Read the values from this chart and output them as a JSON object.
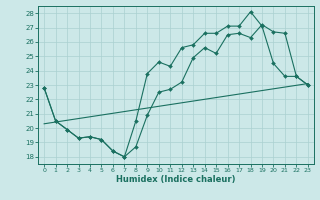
{
  "title": "",
  "xlabel": "Humidex (Indice chaleur)",
  "xlim": [
    -0.5,
    23.5
  ],
  "ylim": [
    17.5,
    28.5
  ],
  "xticks": [
    0,
    1,
    2,
    3,
    4,
    5,
    6,
    7,
    8,
    9,
    10,
    11,
    12,
    13,
    14,
    15,
    16,
    17,
    18,
    19,
    20,
    21,
    22,
    23
  ],
  "yticks": [
    18,
    19,
    20,
    21,
    22,
    23,
    24,
    25,
    26,
    27,
    28
  ],
  "bg_color": "#cce8e8",
  "grid_color": "#aad0d0",
  "line_color": "#1a7060",
  "line1_x": [
    0,
    1,
    2,
    3,
    4,
    5,
    6,
    7,
    8,
    9,
    10,
    11,
    12,
    13,
    14,
    15,
    16,
    17,
    18,
    19,
    20,
    21,
    22,
    23
  ],
  "line1_y": [
    22.8,
    20.5,
    19.9,
    19.3,
    19.4,
    19.2,
    18.4,
    18.0,
    18.7,
    20.9,
    22.5,
    22.7,
    23.2,
    24.9,
    25.6,
    25.2,
    26.5,
    26.6,
    26.3,
    27.2,
    26.7,
    26.6,
    23.6,
    23.0
  ],
  "line2_x": [
    0,
    1,
    2,
    3,
    4,
    5,
    6,
    7,
    8,
    9,
    10,
    11,
    12,
    13,
    14,
    15,
    16,
    17,
    18,
    19,
    20,
    21,
    22,
    23
  ],
  "line2_y": [
    22.8,
    20.5,
    19.9,
    19.3,
    19.4,
    19.2,
    18.4,
    18.0,
    20.5,
    23.8,
    24.6,
    24.3,
    25.6,
    25.8,
    26.6,
    26.6,
    27.1,
    27.1,
    28.1,
    27.1,
    24.5,
    23.6,
    23.6,
    23.0
  ],
  "line3_x": [
    0,
    23
  ],
  "line3_y": [
    20.3,
    23.1
  ]
}
